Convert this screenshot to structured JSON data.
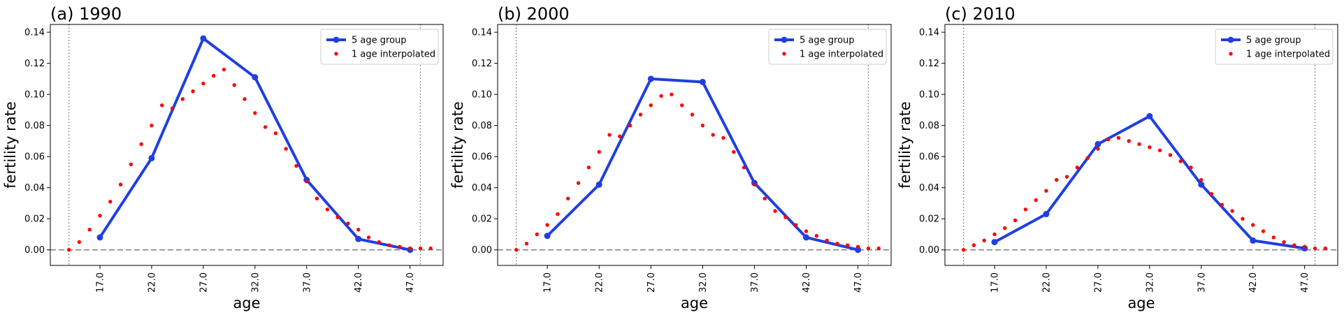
{
  "chart_data": [
    {
      "type": "line",
      "title": "(a) 1990",
      "xlabel": "age",
      "ylabel": "fertility rate",
      "xlim": [
        12.2,
        50.2
      ],
      "ylim": [
        -0.01,
        0.145
      ],
      "x_ticks": [
        "17.0",
        "22.0",
        "27.0",
        "32.0",
        "37.0",
        "42.0",
        "47.0"
      ],
      "y_ticks": [
        "0.00",
        "0.02",
        "0.04",
        "0.06",
        "0.08",
        "0.10",
        "0.12",
        "0.14"
      ],
      "vlines": [
        14,
        48
      ],
      "hline": 0,
      "legend": "top-right",
      "series": [
        {
          "name": "5 age group",
          "style": "line-marker",
          "color": "#1f3fe0",
          "x": [
            17,
            22,
            27,
            32,
            37,
            42,
            47
          ],
          "y": [
            0.008,
            0.059,
            0.136,
            0.111,
            0.045,
            0.007,
            0.0
          ]
        },
        {
          "name": "1 age interpolated",
          "style": "dots",
          "color": "#ff0000",
          "x": [
            14,
            15,
            16,
            17,
            18,
            19,
            20,
            21,
            22,
            23,
            24,
            25,
            26,
            27,
            28,
            29,
            30,
            31,
            32,
            33,
            34,
            35,
            36,
            37,
            38,
            39,
            40,
            41,
            42,
            43,
            44,
            45,
            46,
            47,
            48,
            49
          ],
          "y": [
            0.0,
            0.005,
            0.013,
            0.022,
            0.031,
            0.042,
            0.055,
            0.068,
            0.08,
            0.093,
            0.091,
            0.097,
            0.102,
            0.107,
            0.112,
            0.116,
            0.106,
            0.097,
            0.088,
            0.079,
            0.075,
            0.065,
            0.054,
            0.044,
            0.033,
            0.026,
            0.021,
            0.017,
            0.013,
            0.008,
            0.005,
            0.003,
            0.002,
            0.001,
            0.001,
            0.001
          ]
        }
      ]
    },
    {
      "type": "line",
      "title": "(b) 2000",
      "xlabel": "age",
      "ylabel": "fertility rate",
      "xlim": [
        12.2,
        50.2
      ],
      "ylim": [
        -0.01,
        0.145
      ],
      "x_ticks": [
        "17.0",
        "22.0",
        "27.0",
        "32.0",
        "37.0",
        "42.0",
        "47.0"
      ],
      "y_ticks": [
        "0.00",
        "0.02",
        "0.04",
        "0.06",
        "0.08",
        "0.10",
        "0.12",
        "0.14"
      ],
      "vlines": [
        14,
        48
      ],
      "hline": 0,
      "legend": "top-right",
      "series": [
        {
          "name": "5 age group",
          "style": "line-marker",
          "color": "#1f3fe0",
          "x": [
            17,
            22,
            27,
            32,
            37,
            42,
            47
          ],
          "y": [
            0.009,
            0.042,
            0.11,
            0.108,
            0.043,
            0.008,
            0.0
          ]
        },
        {
          "name": "1 age interpolated",
          "style": "dots",
          "color": "#ff0000",
          "x": [
            14,
            15,
            16,
            17,
            18,
            19,
            20,
            21,
            22,
            23,
            24,
            25,
            26,
            27,
            28,
            29,
            30,
            31,
            32,
            33,
            34,
            35,
            36,
            37,
            38,
            39,
            40,
            41,
            42,
            43,
            44,
            45,
            46,
            47,
            48,
            49
          ],
          "y": [
            0.0,
            0.004,
            0.01,
            0.016,
            0.023,
            0.033,
            0.043,
            0.053,
            0.063,
            0.074,
            0.073,
            0.08,
            0.087,
            0.093,
            0.099,
            0.1,
            0.093,
            0.087,
            0.08,
            0.074,
            0.072,
            0.063,
            0.053,
            0.042,
            0.033,
            0.025,
            0.021,
            0.016,
            0.012,
            0.009,
            0.006,
            0.004,
            0.003,
            0.002,
            0.001,
            0.001
          ]
        }
      ]
    },
    {
      "type": "line",
      "title": "(c) 2010",
      "xlabel": "age",
      "ylabel": "fertility rate",
      "xlim": [
        12.2,
        50.2
      ],
      "ylim": [
        -0.01,
        0.145
      ],
      "x_ticks": [
        "17.0",
        "22.0",
        "27.0",
        "32.0",
        "37.0",
        "42.0",
        "47.0"
      ],
      "y_ticks": [
        "0.00",
        "0.02",
        "0.04",
        "0.06",
        "0.08",
        "0.10",
        "0.12",
        "0.14"
      ],
      "vlines": [
        14,
        48
      ],
      "hline": 0,
      "legend": "top-right",
      "series": [
        {
          "name": "5 age group",
          "style": "line-marker",
          "color": "#1f3fe0",
          "x": [
            17,
            22,
            27,
            32,
            37,
            42,
            47
          ],
          "y": [
            0.005,
            0.023,
            0.068,
            0.086,
            0.042,
            0.006,
            0.001
          ]
        },
        {
          "name": "1 age interpolated",
          "style": "dots",
          "color": "#ff0000",
          "x": [
            14,
            15,
            16,
            17,
            18,
            19,
            20,
            21,
            22,
            23,
            24,
            25,
            26,
            27,
            28,
            29,
            30,
            31,
            32,
            33,
            34,
            35,
            36,
            37,
            38,
            39,
            40,
            41,
            42,
            43,
            44,
            45,
            46,
            47,
            48,
            49
          ],
          "y": [
            0.0,
            0.003,
            0.006,
            0.01,
            0.014,
            0.019,
            0.026,
            0.032,
            0.038,
            0.045,
            0.047,
            0.053,
            0.059,
            0.065,
            0.071,
            0.072,
            0.07,
            0.068,
            0.066,
            0.064,
            0.061,
            0.057,
            0.053,
            0.045,
            0.036,
            0.029,
            0.025,
            0.02,
            0.016,
            0.012,
            0.008,
            0.005,
            0.003,
            0.002,
            0.001,
            0.001
          ]
        }
      ]
    }
  ]
}
